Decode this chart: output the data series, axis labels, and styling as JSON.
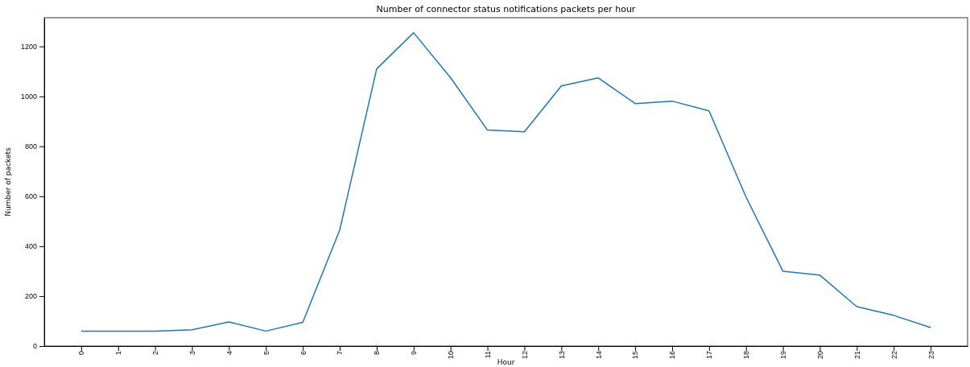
{
  "chart_data": {
    "type": "line",
    "title": "Number of connector status notifications packets per hour",
    "xlabel": "Hour",
    "ylabel": "Number of packets",
    "x": [
      0,
      1,
      2,
      3,
      4,
      5,
      6,
      7,
      8,
      9,
      10,
      11,
      12,
      13,
      14,
      15,
      16,
      17,
      18,
      19,
      20,
      21,
      22,
      23
    ],
    "series": [
      {
        "color": "#1f77b4",
        "values": [
          60,
          60,
          60,
          65,
          97,
          60,
          95,
          465,
          1110,
          1255,
          1075,
          865,
          858,
          1042,
          1074,
          971,
          981,
          942,
          597,
          300,
          284,
          158,
          123,
          74
        ]
      }
    ],
    "xlim": [
      -1,
      24
    ],
    "xticks": [
      0,
      1,
      2,
      3,
      4,
      5,
      6,
      7,
      8,
      9,
      10,
      11,
      12,
      13,
      14,
      15,
      16,
      17,
      18,
      19,
      20,
      21,
      22,
      23
    ],
    "ylim": [
      0,
      1315
    ],
    "yticks": [
      0,
      200,
      400,
      600,
      800,
      1000,
      1200
    ],
    "grid": false,
    "marker": "none",
    "line_style": "solid"
  }
}
